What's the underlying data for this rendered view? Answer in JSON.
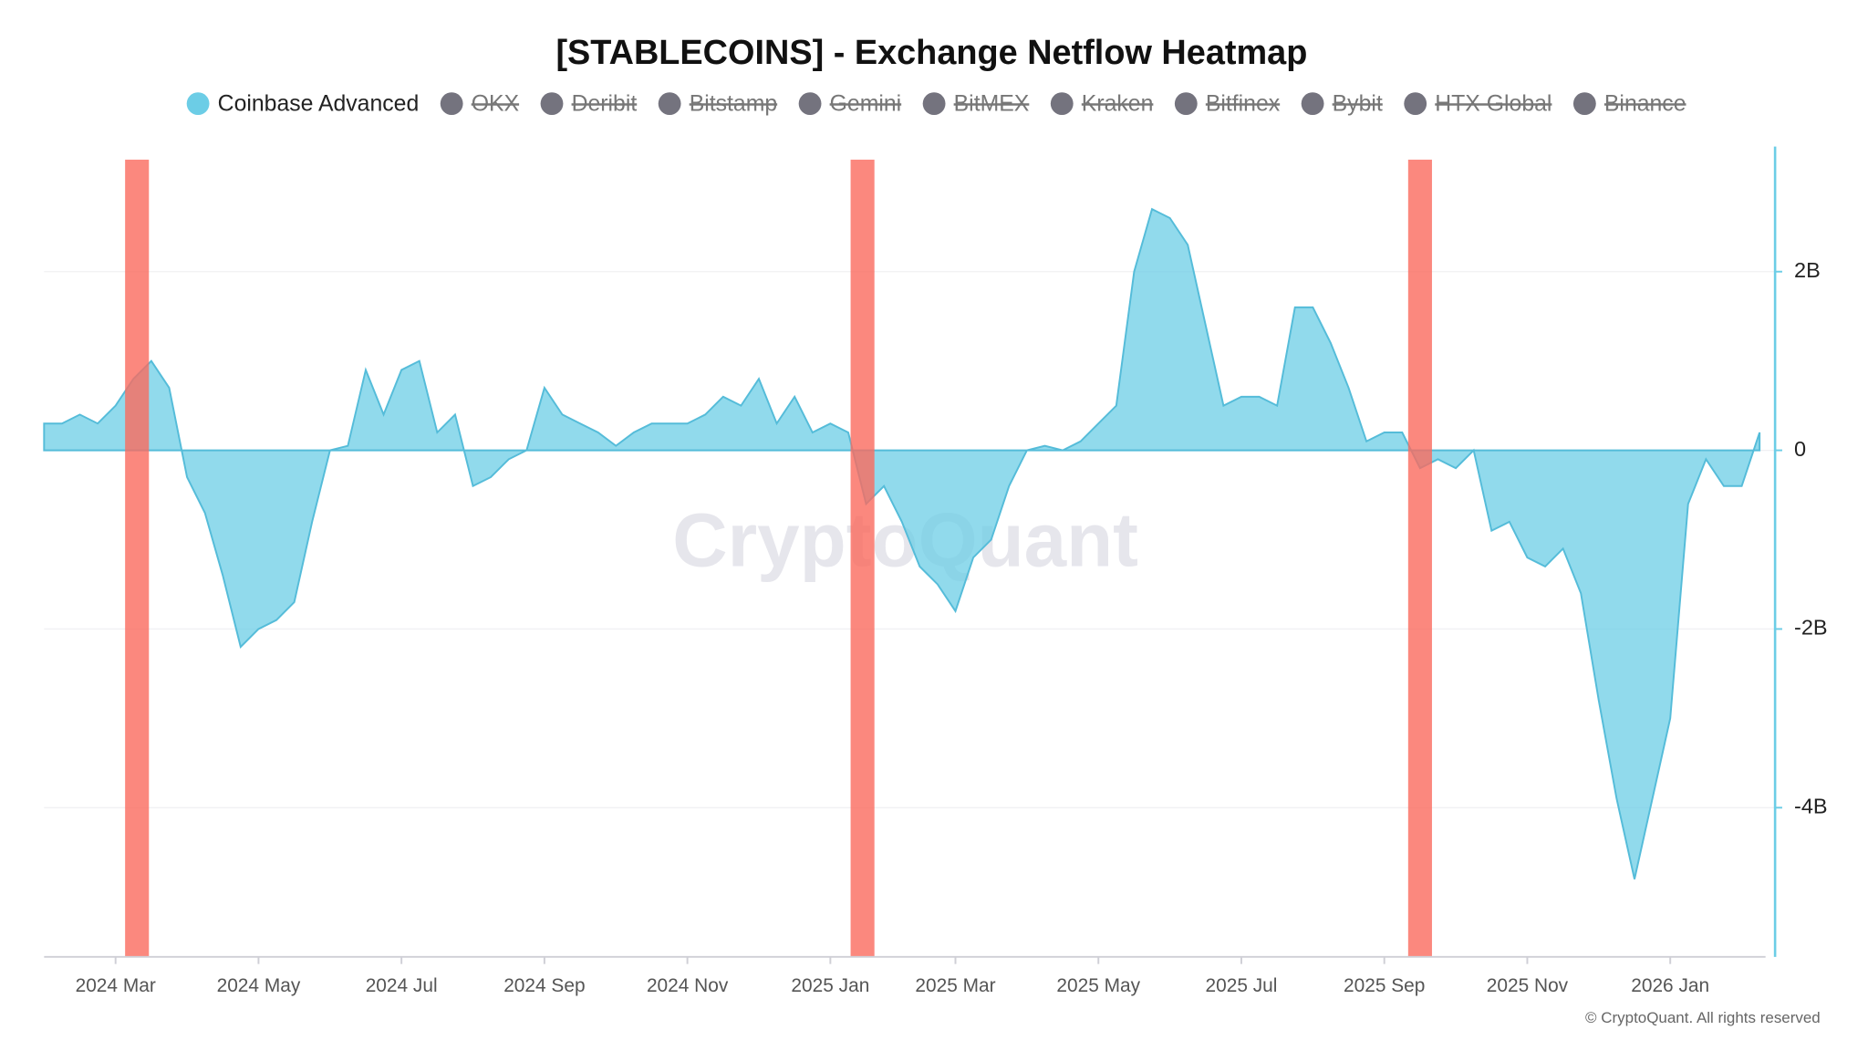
{
  "chart_data": {
    "type": "area",
    "title": "[STABLECOINS] - Exchange Netflow Heatmap",
    "watermark": "CryptoQuant",
    "credit": "© CryptoQuant. All rights reserved",
    "categories": [
      null,
      null,
      null,
      null,
      "2024 Mar",
      null,
      null,
      null,
      null,
      null,
      null,
      null,
      "2024 May",
      null,
      null,
      null,
      null,
      null,
      null,
      null,
      "2024 Jul",
      null,
      null,
      null,
      null,
      null,
      null,
      null,
      "2024 Sep",
      null,
      null,
      null,
      null,
      null,
      null,
      null,
      "2024 Nov",
      null,
      null,
      null,
      null,
      null,
      null,
      null,
      "2025 Jan",
      null,
      null,
      null,
      null,
      null,
      null,
      "2025 Mar",
      null,
      null,
      null,
      null,
      null,
      null,
      null,
      "2025 May",
      null,
      null,
      null,
      null,
      null,
      null,
      null,
      "2025 Jul",
      null,
      null,
      null,
      null,
      null,
      null,
      null,
      "2025 Sep",
      null,
      null,
      null,
      null,
      null,
      null,
      null,
      "2025 Nov",
      null,
      null,
      null,
      null,
      null,
      null,
      null,
      "2026 Jan",
      null,
      null,
      null,
      null,
      null
    ],
    "series": [
      {
        "name": "Coinbase Advanced",
        "color": "#6ccde6",
        "values": [
          0.3,
          0.3,
          0.4,
          0.3,
          0.5,
          0.8,
          1.0,
          0.7,
          -0.3,
          -0.7,
          -1.4,
          -2.2,
          -2.0,
          -1.9,
          -1.7,
          -0.8,
          0.0,
          0.05,
          0.9,
          0.4,
          0.9,
          1.0,
          0.2,
          0.4,
          -0.4,
          -0.3,
          -0.1,
          0.0,
          0.7,
          0.4,
          0.3,
          0.2,
          0.05,
          0.2,
          0.3,
          0.3,
          0.3,
          0.4,
          0.6,
          0.5,
          0.8,
          0.3,
          0.6,
          0.2,
          0.3,
          0.2,
          -0.6,
          -0.4,
          -0.8,
          -1.3,
          -1.5,
          -1.8,
          -1.2,
          -1.0,
          -0.4,
          0.0,
          0.05,
          0.0,
          0.1,
          0.3,
          0.5,
          2.0,
          2.7,
          2.6,
          2.3,
          1.4,
          0.5,
          0.6,
          0.6,
          0.5,
          1.6,
          1.6,
          1.2,
          0.7,
          0.1,
          0.2,
          0.2,
          -0.2,
          -0.1,
          -0.2,
          0.0,
          -0.9,
          -0.8,
          -1.2,
          -1.3,
          -1.1,
          -1.6,
          -2.8,
          -3.9,
          -4.8,
          -3.9,
          -3.0,
          -0.6,
          -0.1,
          -0.4,
          -0.4,
          0.2
        ]
      }
    ],
    "hidden_series": [
      {
        "name": "OKX",
        "color": "#74737e"
      },
      {
        "name": "Deribit",
        "color": "#74737e"
      },
      {
        "name": "Bitstamp",
        "color": "#74737e"
      },
      {
        "name": "Gemini",
        "color": "#74737e"
      },
      {
        "name": "BitMEX",
        "color": "#74737e"
      },
      {
        "name": "Kraken",
        "color": "#74737e"
      },
      {
        "name": "Bitfinex",
        "color": "#74737e"
      },
      {
        "name": "Bybit",
        "color": "#74737e"
      },
      {
        "name": "HTX Global",
        "color": "#74737e"
      },
      {
        "name": "Binance",
        "color": "#74737e"
      }
    ],
    "ylim": [
      -5.67,
      3.4
    ],
    "yticks": [
      {
        "value": -4,
        "label": "-4B"
      },
      {
        "value": -2,
        "label": "-2B"
      },
      0,
      {
        "value": 2,
        "label": "2B"
      }
    ],
    "grid": true
  }
}
